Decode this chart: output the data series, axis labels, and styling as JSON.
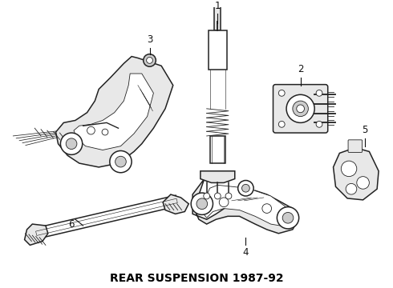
{
  "title": "REAR SUSPENSION 1987-92",
  "title_fontsize": 10,
  "title_fontweight": "bold",
  "background_color": "#ffffff",
  "fig_width": 4.9,
  "fig_height": 3.6,
  "dpi": 100,
  "lc": "#222222",
  "lw_main": 1.1,
  "lw_thin": 0.6,
  "label_fontsize": 8.5
}
